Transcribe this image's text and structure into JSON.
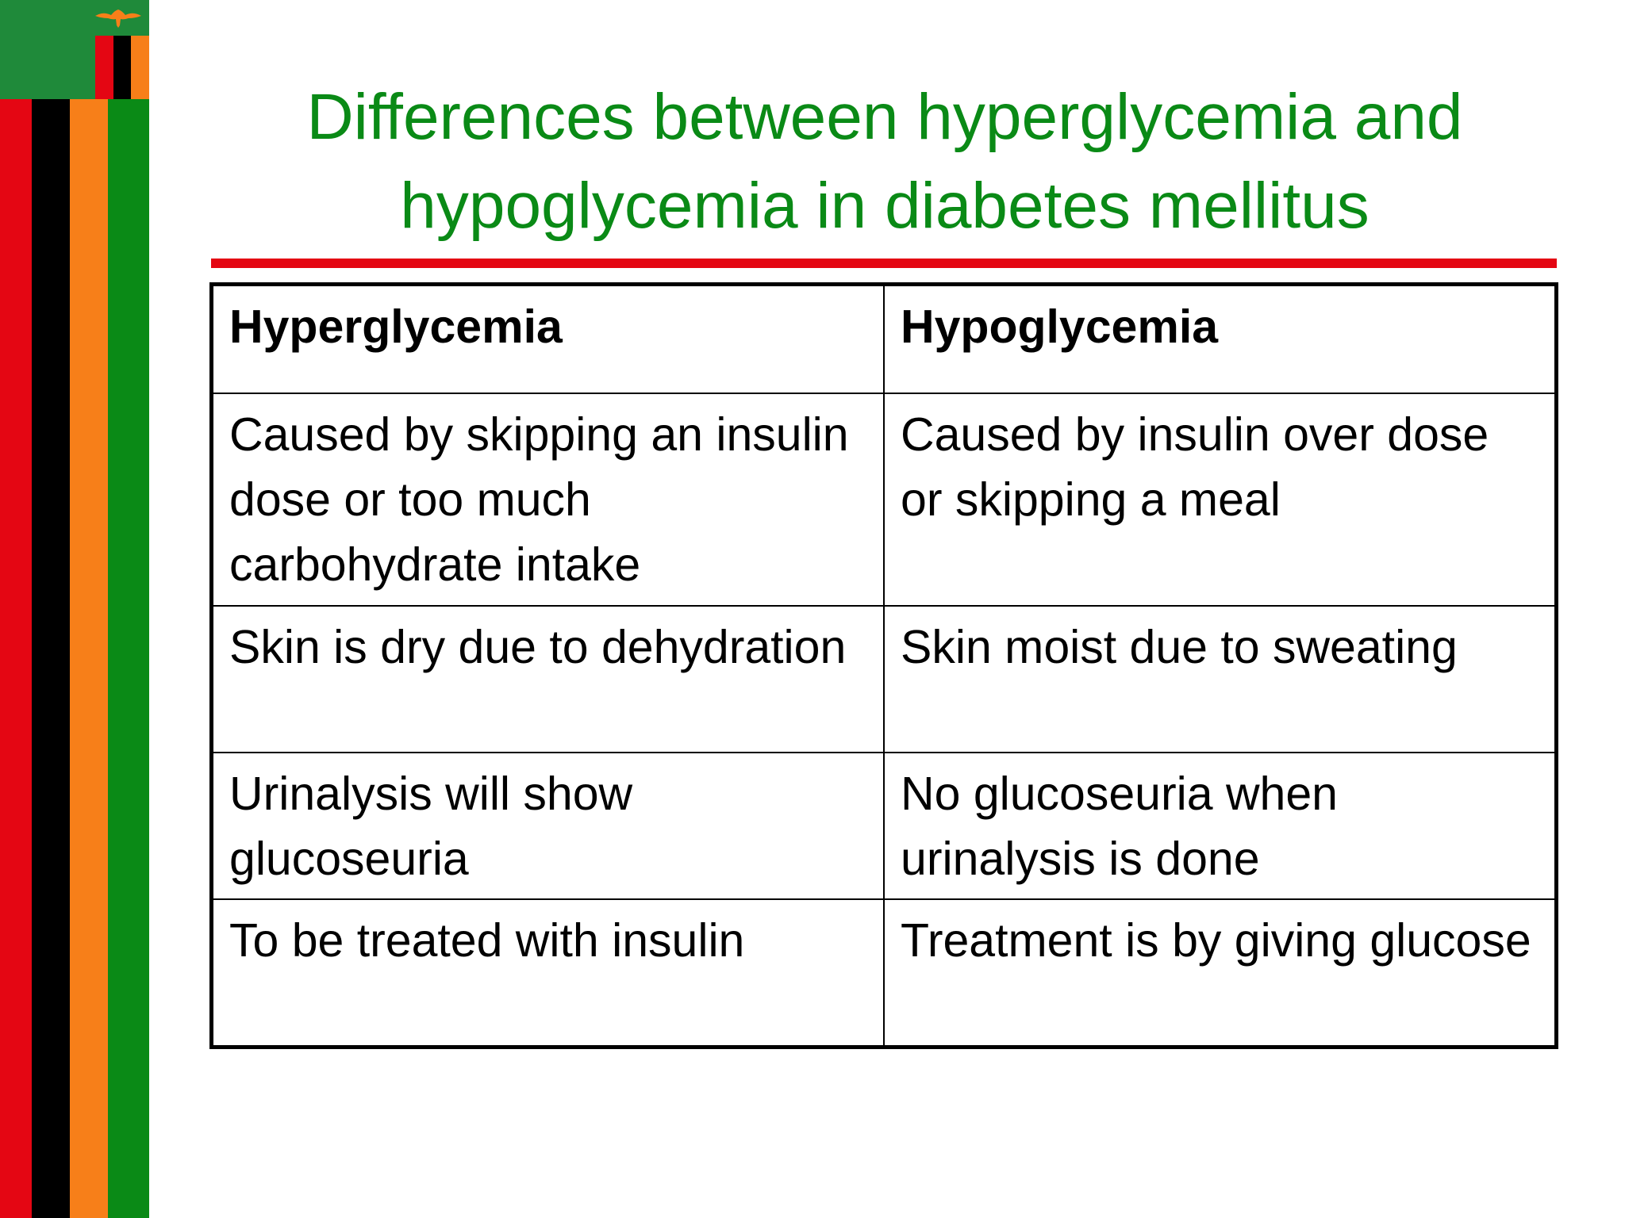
{
  "slide": {
    "title_line1": "Differences between hyperglycemia and",
    "title_line2": "hypoglycemia in diabetes mellitus",
    "colors": {
      "title": "#0a8a16",
      "rule": "#e40613",
      "flag_green": "#1f8a3a",
      "flag_red": "#e40613",
      "flag_black": "#000000",
      "flag_orange": "#f77f19",
      "eagle": "#f77f19"
    },
    "decoration_icon": "zambia-flag-eagle-icon"
  },
  "table": {
    "headers": [
      "Hyperglycemia",
      "Hypoglycemia"
    ],
    "rows": [
      [
        "Caused by skipping an insulin dose or too much carbohydrate intake",
        "Caused by insulin over dose or skipping a meal"
      ],
      [
        "Skin is dry due to dehydration",
        "Skin moist due to sweating"
      ],
      [
        "Urinalysis will show glucoseuria",
        "No glucoseuria when urinalysis is done"
      ],
      [
        "To be treated with insulin",
        "Treatment is by giving glucose"
      ]
    ]
  }
}
